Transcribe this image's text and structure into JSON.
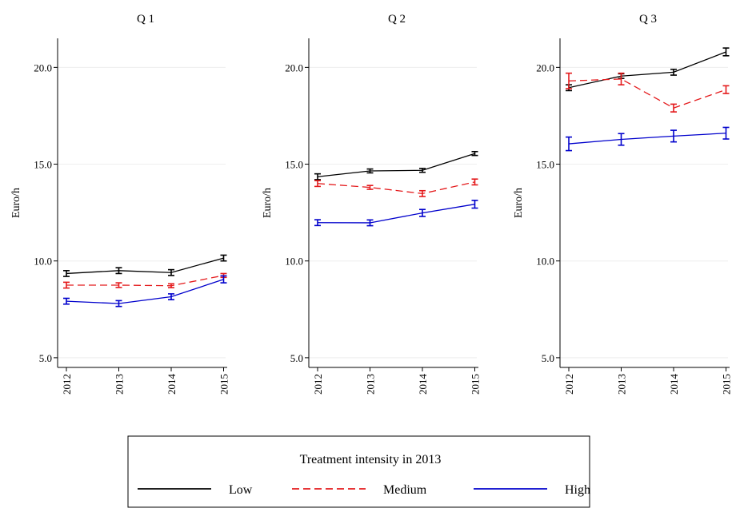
{
  "chart_data": {
    "type": "line",
    "x": [
      "2012",
      "2013",
      "2014",
      "2015"
    ],
    "ylabel": "Euro/h",
    "yticks": [
      "5.0",
      "10.0",
      "15.0",
      "20.0"
    ],
    "ylim": [
      4.5,
      21.5
    ],
    "grid": "horizontal",
    "legend": {
      "title": "Treatment intensity in 2013",
      "placement": "bottom-center",
      "entries": [
        "Low",
        "Medium",
        "High"
      ]
    },
    "series_styles": [
      {
        "name": "Low",
        "color": "#000000",
        "dash": "solid"
      },
      {
        "name": "Medium",
        "color": "#e41a1c",
        "dash": "dashed"
      },
      {
        "name": "High",
        "color": "#0000cc",
        "dash": "solid"
      }
    ],
    "panels": [
      {
        "title": "Q 1",
        "series": [
          {
            "name": "Low",
            "values": [
              9.35,
              9.5,
              9.4,
              10.15
            ],
            "errors": [
              0.15,
              0.15,
              0.15,
              0.15
            ]
          },
          {
            "name": "Medium",
            "values": [
              8.75,
              8.75,
              8.72,
              9.25
            ],
            "errors": [
              0.15,
              0.12,
              0.1,
              0.1
            ]
          },
          {
            "name": "High",
            "values": [
              7.92,
              7.8,
              8.15,
              9.05
            ],
            "errors": [
              0.15,
              0.15,
              0.15,
              0.18
            ]
          }
        ]
      },
      {
        "title": "Q 2",
        "series": [
          {
            "name": "Low",
            "values": [
              14.35,
              14.65,
              14.68,
              15.55
            ],
            "errors": [
              0.15,
              0.1,
              0.1,
              0.1
            ]
          },
          {
            "name": "Medium",
            "values": [
              14.0,
              13.8,
              13.48,
              14.08
            ],
            "errors": [
              0.15,
              0.1,
              0.15,
              0.15
            ]
          },
          {
            "name": "High",
            "values": [
              11.98,
              11.97,
              12.48,
              12.93
            ],
            "errors": [
              0.15,
              0.15,
              0.18,
              0.2
            ]
          }
        ]
      },
      {
        "title": "Q 3",
        "series": [
          {
            "name": "Low",
            "values": [
              18.95,
              19.55,
              19.75,
              20.8
            ],
            "errors": [
              0.15,
              0.12,
              0.15,
              0.2
            ]
          },
          {
            "name": "Medium",
            "values": [
              19.3,
              19.4,
              17.9,
              18.85
            ],
            "errors": [
              0.4,
              0.3,
              0.2,
              0.2
            ]
          },
          {
            "name": "High",
            "values": [
              16.05,
              16.28,
              16.45,
              16.6
            ],
            "errors": [
              0.35,
              0.3,
              0.3,
              0.3
            ]
          }
        ]
      }
    ]
  }
}
